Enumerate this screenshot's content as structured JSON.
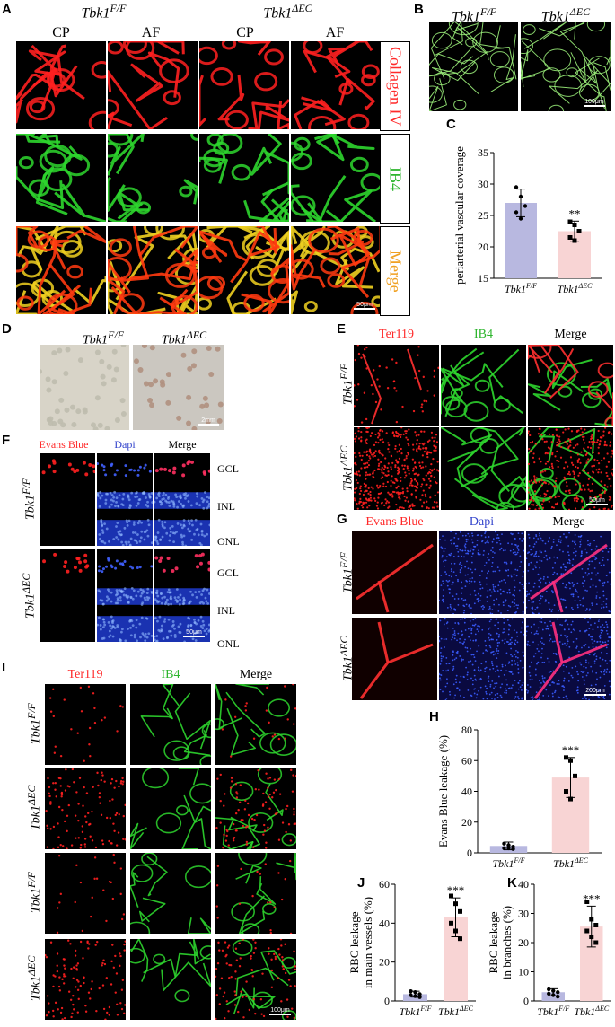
{
  "panels": {
    "A": {
      "letter": "A",
      "group1": "Tbk1F/F",
      "group2": "Tbk1ΔEC",
      "cols": [
        "CP",
        "AF",
        "CP",
        "AF"
      ],
      "rows": [
        "Collagen IV",
        "IB4",
        "Merge"
      ],
      "scalebar": "50μm"
    },
    "B": {
      "letter": "B",
      "group1": "Tbk1F/F",
      "group2": "Tbk1ΔEC",
      "scalebar": "100μm"
    },
    "C": {
      "letter": "C"
    },
    "D": {
      "letter": "D",
      "group1": "Tbk1F/F",
      "group2": "Tbk1ΔEC",
      "scalebar": "2mm"
    },
    "E": {
      "letter": "E",
      "cols": [
        "Ter119",
        "IB4",
        "Merge"
      ],
      "rows": [
        "Tbk1F/F",
        "Tbk1ΔEC"
      ],
      "scalebar": "50μm"
    },
    "F": {
      "letter": "F",
      "cols": [
        "Evans Blue",
        "Dapi",
        "Merge"
      ],
      "rows": [
        "Tbk1F/F",
        "Tbk1ΔEC"
      ],
      "layers": [
        "GCL",
        "INL",
        "ONL"
      ],
      "scalebar": "50μm"
    },
    "G": {
      "letter": "G",
      "cols": [
        "Evans Blue",
        "Dapi",
        "Merge"
      ],
      "rows": [
        "Tbk1F/F",
        "Tbk1ΔEC"
      ],
      "scalebar": "200μm"
    },
    "H": {
      "letter": "H"
    },
    "I": {
      "letter": "I",
      "cols": [
        "Ter119",
        "IB4",
        "Merge"
      ],
      "rows": [
        "Tbk1F/F",
        "Tbk1ΔEC",
        "Tbk1F/F",
        "Tbk1ΔEC"
      ],
      "scalebar": "100μm"
    },
    "J": {
      "letter": "J"
    },
    "K": {
      "letter": "K"
    }
  },
  "genotype": {
    "base": "Tbk1",
    "ff": "F/F",
    "dec": "ΔEC"
  },
  "chart_data": [
    {
      "id": "C",
      "type": "bar",
      "ylabel": "periarterial vascular coverage",
      "ylim": [
        15,
        35
      ],
      "yticks": [
        15,
        20,
        25,
        30,
        35
      ],
      "categories": [
        "Tbk1F/F",
        "Tbk1ΔEC"
      ],
      "values": [
        27,
        22.5
      ],
      "errors": [
        2.2,
        1.6
      ],
      "points": [
        [
          29.5,
          28,
          26.5,
          25.5,
          24.5
        ],
        [
          24,
          23.5,
          22.5,
          21.5,
          21
        ]
      ],
      "significance": [
        "",
        "**"
      ],
      "colors": [
        "#b8b8e0",
        "#f8d4d4"
      ]
    },
    {
      "id": "H",
      "type": "bar",
      "ylabel": "Evans Blue leakage (%)",
      "ylim": [
        0,
        80
      ],
      "yticks": [
        0,
        20,
        40,
        60,
        80
      ],
      "categories": [
        "Tbk1F/F",
        "Tbk1ΔEC"
      ],
      "values": [
        4.5,
        49
      ],
      "errors": [
        2.5,
        13
      ],
      "points": [
        [
          6,
          5,
          4,
          3,
          3,
          2.5
        ],
        [
          62,
          60,
          50,
          40,
          35
        ]
      ],
      "significance": [
        "",
        "***"
      ],
      "colors": [
        "#b8b8e0",
        "#f8d4d4"
      ]
    },
    {
      "id": "J",
      "type": "bar",
      "ylabel": "RBC leakage in main vessels (%)",
      "ylim": [
        0,
        60
      ],
      "yticks": [
        0,
        20,
        40,
        60
      ],
      "categories": [
        "Tbk1F/F",
        "Tbk1ΔEC"
      ],
      "values": [
        3.5,
        43
      ],
      "errors": [
        1.5,
        10
      ],
      "points": [
        [
          5,
          4.5,
          3.5,
          3,
          2.5,
          2
        ],
        [
          54,
          50,
          46,
          40,
          36,
          32
        ]
      ],
      "significance": [
        "",
        "***"
      ],
      "colors": [
        "#b8b8e0",
        "#f8d4d4"
      ]
    },
    {
      "id": "K",
      "type": "bar",
      "ylabel": "RBC leakage in branches (%)",
      "ylim": [
        0,
        40
      ],
      "yticks": [
        0,
        10,
        20,
        30,
        40
      ],
      "categories": [
        "Tbk1F/F",
        "Tbk1ΔEC"
      ],
      "values": [
        3,
        25.5
      ],
      "errors": [
        1.2,
        7
      ],
      "points": [
        [
          4,
          3.5,
          3,
          2.5,
          2,
          1.5
        ],
        [
          34,
          28,
          26,
          24,
          22,
          20
        ]
      ],
      "significance": [
        "",
        "***"
      ],
      "colors": [
        "#b8b8e0",
        "#f8d4d4"
      ]
    }
  ]
}
